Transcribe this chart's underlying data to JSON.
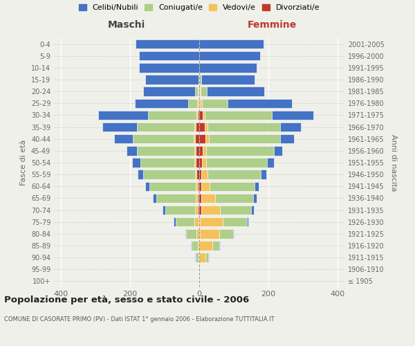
{
  "age_groups": [
    "100+",
    "95-99",
    "90-94",
    "85-89",
    "80-84",
    "75-79",
    "70-74",
    "65-69",
    "60-64",
    "55-59",
    "50-54",
    "45-49",
    "40-44",
    "35-39",
    "30-34",
    "25-29",
    "20-24",
    "15-19",
    "10-14",
    "5-9",
    "0-4"
  ],
  "birth_years": [
    "≤ 1905",
    "1906-1910",
    "1911-1915",
    "1916-1920",
    "1921-1925",
    "1926-1930",
    "1931-1935",
    "1936-1940",
    "1941-1945",
    "1946-1950",
    "1951-1955",
    "1956-1960",
    "1961-1965",
    "1966-1970",
    "1971-1975",
    "1976-1980",
    "1981-1985",
    "1986-1990",
    "1991-1995",
    "1996-2000",
    "2001-2005"
  ],
  "males": {
    "celibi": [
      0,
      0,
      2,
      2,
      3,
      5,
      8,
      10,
      12,
      15,
      25,
      30,
      55,
      100,
      145,
      155,
      150,
      155,
      175,
      175,
      185
    ],
    "coniugati": [
      0,
      0,
      8,
      18,
      30,
      55,
      85,
      115,
      135,
      150,
      155,
      165,
      175,
      165,
      140,
      25,
      8,
      2,
      0,
      0,
      0
    ],
    "vedovi": [
      0,
      0,
      2,
      5,
      8,
      12,
      8,
      5,
      5,
      5,
      5,
      5,
      5,
      5,
      3,
      5,
      2,
      0,
      0,
      0,
      0
    ],
    "divorziati": [
      0,
      0,
      0,
      0,
      0,
      2,
      5,
      5,
      5,
      8,
      10,
      10,
      12,
      10,
      5,
      2,
      2,
      0,
      0,
      0,
      0
    ]
  },
  "females": {
    "nubili": [
      0,
      0,
      2,
      2,
      3,
      5,
      8,
      10,
      12,
      15,
      20,
      25,
      40,
      60,
      120,
      185,
      165,
      155,
      165,
      175,
      185
    ],
    "coniugate": [
      0,
      2,
      8,
      20,
      40,
      70,
      90,
      110,
      130,
      155,
      175,
      195,
      205,
      210,
      195,
      75,
      18,
      5,
      0,
      0,
      0
    ],
    "vedove": [
      0,
      2,
      18,
      38,
      55,
      65,
      55,
      40,
      25,
      18,
      12,
      10,
      10,
      8,
      5,
      5,
      2,
      0,
      0,
      0,
      0
    ],
    "divorziate": [
      0,
      0,
      0,
      0,
      2,
      2,
      5,
      5,
      5,
      5,
      8,
      10,
      18,
      15,
      10,
      2,
      2,
      0,
      0,
      0,
      0
    ]
  },
  "colors": {
    "celibi_nubili": "#4472C4",
    "coniugati": "#AECF8A",
    "vedovi": "#F5C15A",
    "divorziati": "#C0392B"
  },
  "xlim": 420,
  "title": "Popolazione per età, sesso e stato civile - 2006",
  "subtitle": "COMUNE DI CASORATE PRIMO (PV) - Dati ISTAT 1° gennaio 2006 - Elaborazione TUTTITALIA.IT",
  "ylabel_left": "Fasce di età",
  "ylabel_right": "Anni di nascita",
  "xlabel_left": "Maschi",
  "xlabel_right": "Femmine",
  "legend_labels": [
    "Celibi/Nubili",
    "Coniugati/e",
    "Vedovi/e",
    "Divorziati/e"
  ],
  "background_color": "#f0f0eb",
  "bar_bg_color": "#ffffff"
}
